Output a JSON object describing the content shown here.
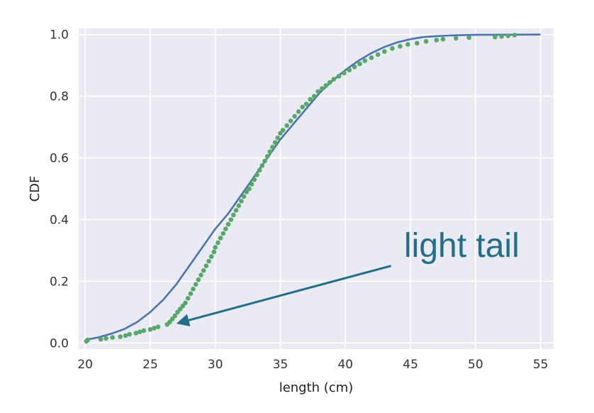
{
  "chart_data": {
    "type": "scatter",
    "xlabel": "length (cm)",
    "ylabel": "CDF",
    "xlim": [
      19.5,
      56.0
    ],
    "ylim": [
      -0.02,
      1.02
    ],
    "xticks": [
      "20",
      "25",
      "30",
      "35",
      "40",
      "45",
      "50",
      "55"
    ],
    "yticks": [
      "0.0",
      "0.2",
      "0.4",
      "0.6",
      "0.8",
      "1.0"
    ],
    "grid": true,
    "background": "#EAEAF2",
    "model_color": "#4C72B0",
    "data_color": "#55A868",
    "annotation": {
      "text": "light tail",
      "color": "#216D8A",
      "arrow_from": [
        43.5,
        0.25
      ],
      "arrow_to": [
        27.2,
        0.065
      ]
    },
    "series": [
      {
        "kind": "line",
        "x": [
          20.0,
          21.0,
          22.0,
          23.0,
          24.0,
          25.0,
          26.0,
          27.0,
          28.0,
          29.0,
          30.0,
          31.0,
          32.0,
          33.0,
          34.0,
          35.0,
          36.0,
          37.0,
          38.0,
          39.0,
          40.0,
          41.0,
          42.0,
          43.0,
          44.0,
          45.0,
          46.0,
          47.0,
          48.0,
          50.0,
          52.0,
          55.0
        ],
        "values": [
          0.01,
          0.018,
          0.03,
          0.045,
          0.068,
          0.1,
          0.14,
          0.19,
          0.25,
          0.31,
          0.37,
          0.42,
          0.48,
          0.54,
          0.6,
          0.66,
          0.71,
          0.76,
          0.81,
          0.85,
          0.885,
          0.915,
          0.94,
          0.96,
          0.975,
          0.985,
          0.992,
          0.995,
          0.997,
          0.999,
          0.9995,
          1.0
        ]
      },
      {
        "kind": "points",
        "x": [
          20.1,
          20.2,
          21.2,
          21.6,
          22.1,
          22.7,
          23.1,
          23.4,
          23.9,
          24.2,
          24.5,
          25.0,
          25.3,
          25.6,
          26.3,
          26.5,
          26.7,
          26.9,
          27.1,
          27.3,
          27.5,
          27.7,
          27.9,
          28.1,
          28.3,
          28.5,
          28.7,
          28.9,
          29.1,
          29.3,
          29.5,
          29.7,
          29.9,
          30.0,
          30.2,
          30.4,
          30.6,
          30.8,
          31.0,
          31.2,
          31.4,
          31.6,
          31.8,
          32.0,
          32.2,
          32.4,
          32.6,
          32.8,
          33.0,
          33.2,
          33.4,
          33.6,
          33.8,
          34.0,
          34.2,
          34.4,
          34.6,
          34.8,
          35.0,
          35.2,
          35.5,
          35.8,
          36.1,
          36.4,
          36.7,
          37.0,
          37.3,
          37.6,
          37.9,
          38.2,
          38.5,
          38.8,
          39.1,
          39.5,
          39.9,
          40.3,
          40.7,
          41.1,
          41.5,
          42.0,
          42.5,
          43.0,
          43.6,
          44.2,
          44.8,
          45.5,
          46.2,
          47.0,
          47.5,
          48.5,
          49.5,
          51.5,
          52.0,
          52.5,
          53.0
        ],
        "values": [
          0.005,
          0.01,
          0.012,
          0.015,
          0.018,
          0.02,
          0.024,
          0.028,
          0.032,
          0.036,
          0.04,
          0.044,
          0.048,
          0.052,
          0.06,
          0.068,
          0.078,
          0.088,
          0.1,
          0.11,
          0.12,
          0.13,
          0.145,
          0.16,
          0.175,
          0.19,
          0.205,
          0.22,
          0.235,
          0.25,
          0.265,
          0.28,
          0.295,
          0.31,
          0.325,
          0.34,
          0.355,
          0.37,
          0.385,
          0.4,
          0.415,
          0.43,
          0.445,
          0.46,
          0.475,
          0.49,
          0.5,
          0.515,
          0.53,
          0.545,
          0.56,
          0.575,
          0.59,
          0.605,
          0.62,
          0.635,
          0.65,
          0.665,
          0.68,
          0.69,
          0.705,
          0.72,
          0.735,
          0.75,
          0.765,
          0.775,
          0.79,
          0.8,
          0.815,
          0.825,
          0.835,
          0.845,
          0.855,
          0.865,
          0.875,
          0.885,
          0.895,
          0.905,
          0.915,
          0.925,
          0.935,
          0.945,
          0.955,
          0.962,
          0.968,
          0.972,
          0.978,
          0.982,
          0.985,
          0.988,
          0.99,
          0.992,
          0.994,
          0.996,
          0.998
        ]
      }
    ]
  }
}
